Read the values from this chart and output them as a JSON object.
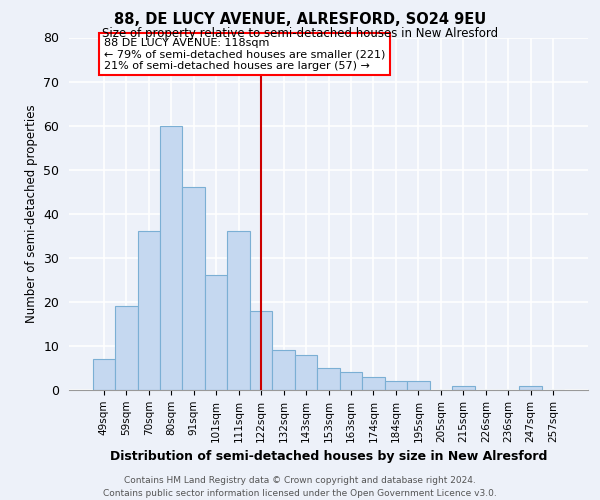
{
  "title": "88, DE LUCY AVENUE, ALRESFORD, SO24 9EU",
  "subtitle": "Size of property relative to semi-detached houses in New Alresford",
  "xlabel": "Distribution of semi-detached houses by size in New Alresford",
  "ylabel": "Number of semi-detached properties",
  "categories": [
    "49sqm",
    "59sqm",
    "70sqm",
    "80sqm",
    "91sqm",
    "101sqm",
    "111sqm",
    "122sqm",
    "132sqm",
    "143sqm",
    "153sqm",
    "163sqm",
    "174sqm",
    "184sqm",
    "195sqm",
    "205sqm",
    "215sqm",
    "226sqm",
    "236sqm",
    "247sqm",
    "257sqm"
  ],
  "values": [
    7,
    19,
    36,
    60,
    46,
    26,
    36,
    18,
    9,
    8,
    5,
    4,
    3,
    2,
    2,
    0,
    1,
    0,
    0,
    1,
    0
  ],
  "bar_color": "#c5d8f0",
  "bar_edge_color": "#7bafd4",
  "ref_bar_index": 7,
  "ref_line_color": "#cc0000",
  "ylim": [
    0,
    80
  ],
  "yticks": [
    0,
    10,
    20,
    30,
    40,
    50,
    60,
    70,
    80
  ],
  "annotation_title": "88 DE LUCY AVENUE: 118sqm",
  "annotation_line1": "← 79% of semi-detached houses are smaller (221)",
  "annotation_line2": "21% of semi-detached houses are larger (57) →",
  "footer_line1": "Contains HM Land Registry data © Crown copyright and database right 2024.",
  "footer_line2": "Contains public sector information licensed under the Open Government Licence v3.0.",
  "background_color": "#edf1f9",
  "grid_color": "#ffffff"
}
